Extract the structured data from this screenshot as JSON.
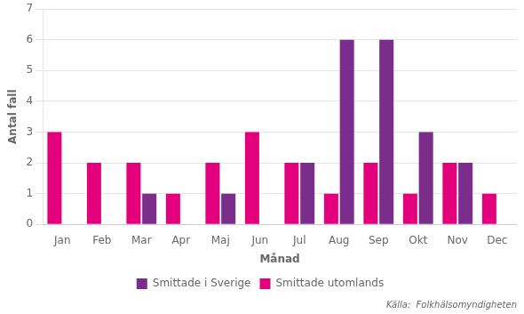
{
  "chart_data": {
    "type": "bar",
    "categories": [
      "Jan",
      "Feb",
      "Mar",
      "Apr",
      "Maj",
      "Jun",
      "Jul",
      "Aug",
      "Sep",
      "Okt",
      "Nov",
      "Dec"
    ],
    "series": [
      {
        "name": "Smittade utomlands",
        "color": "#e4007c",
        "values": [
          3,
          2,
          2,
          1,
          2,
          3,
          2,
          1,
          2,
          1,
          2,
          1
        ]
      },
      {
        "name": "Smittade i Sverige",
        "color": "#7b2d8b",
        "values": [
          0,
          0,
          1,
          0,
          1,
          0,
          2,
          6,
          6,
          3,
          2,
          0
        ]
      }
    ],
    "xlabel": "Månad",
    "ylabel": "Antal fall",
    "ylim": [
      0,
      7
    ],
    "yticks": [
      0,
      1,
      2,
      3,
      4,
      5,
      6,
      7
    ],
    "grid": true,
    "legend": "bottom",
    "annotation": "Källa:  Folkhälsomyndigheten"
  }
}
